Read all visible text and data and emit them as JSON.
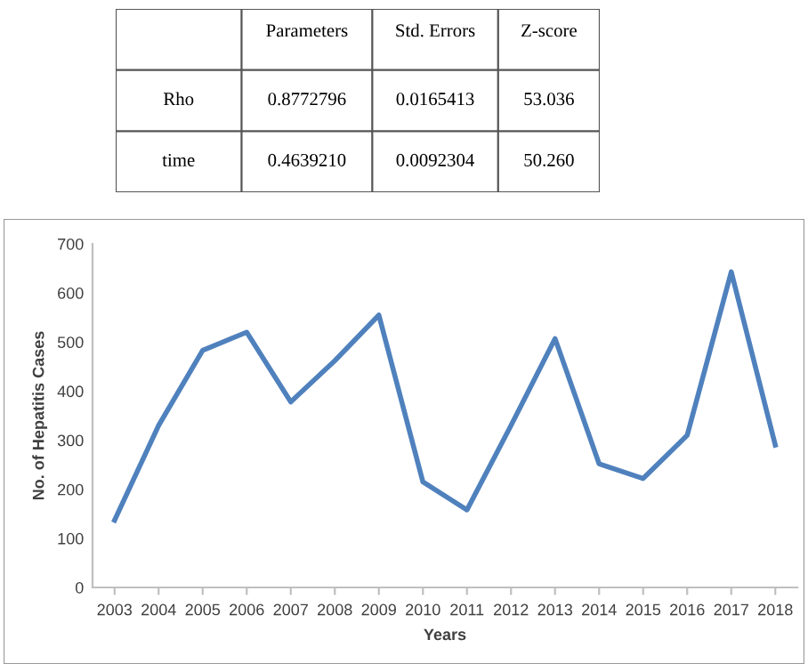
{
  "chart_data": [
    {
      "type": "other",
      "annotations": [
        "Parameters",
        "Std. Errors",
        "Z-score",
        "Rho",
        "0.8772796",
        "0.0165413",
        "53.036",
        "time",
        "0.4639210",
        "0.0092304",
        "50.260"
      ]
    },
    {
      "type": "line",
      "xlabel": "Years",
      "ylabel": "No. of Hepatitis Cases",
      "categories": [
        "2003",
        "2004",
        "2005",
        "2006",
        "2007",
        "2008",
        "2009",
        "2010",
        "2011",
        "2012",
        "2013",
        "2014",
        "2015",
        "2016",
        "2017",
        "2018"
      ],
      "series": [
        {
          "color": "#4f81bd",
          "values": [
            137,
            330,
            483,
            520,
            378,
            462,
            555,
            215,
            158,
            330,
            507,
            252,
            222,
            310,
            643,
            290
          ]
        }
      ],
      "ylim": [
        0,
        700
      ],
      "yticks": [
        0,
        100,
        200,
        300,
        400,
        500,
        600,
        700
      ],
      "grid": false,
      "legend": false,
      "marker": "none",
      "line_style": "solid"
    }
  ]
}
